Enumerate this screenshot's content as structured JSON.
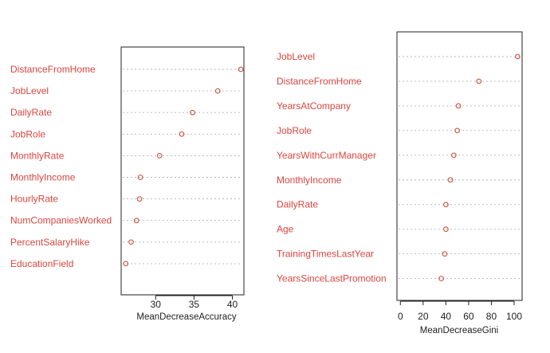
{
  "colors": {
    "label": "#d9453f",
    "marker": "#c8523d",
    "axis": "#222222",
    "guide": "#b5b5b5"
  },
  "chart_data": [
    {
      "type": "dotchart",
      "xlabel": "MeanDecreaseAccuracy",
      "ylabel": "",
      "xlim": [
        25.5,
        41.5
      ],
      "xticks": [
        30,
        35,
        40
      ],
      "grid": "dotted horizontal guides",
      "categories": [
        "DistanceFromHome",
        "JobLevel",
        "DailyRate",
        "JobRole",
        "MonthlyRate",
        "MonthlyIncome",
        "HourlyRate",
        "NumCompaniesWorked",
        "PercentSalaryHike",
        "EducationField"
      ],
      "values": [
        41.1,
        38.1,
        34.8,
        33.4,
        30.5,
        28.0,
        27.9,
        27.5,
        26.8,
        26.1
      ]
    },
    {
      "type": "dotchart",
      "xlabel": "MeanDecreaseGini",
      "ylabel": "",
      "xlim": [
        -3,
        107
      ],
      "xticks": [
        0,
        20,
        40,
        60,
        80,
        100
      ],
      "grid": "dotted horizontal guides",
      "categories": [
        "JobLevel",
        "DistanceFromHome",
        "YearsAtCompany",
        "JobRole",
        "YearsWithCurrManager",
        "MonthlyIncome",
        "DailyRate",
        "Age",
        "TrainingTimesLastYear",
        "YearsSinceLastPromotion"
      ],
      "values": [
        103,
        69,
        51,
        50,
        47,
        44,
        40,
        40,
        39,
        36
      ]
    }
  ]
}
